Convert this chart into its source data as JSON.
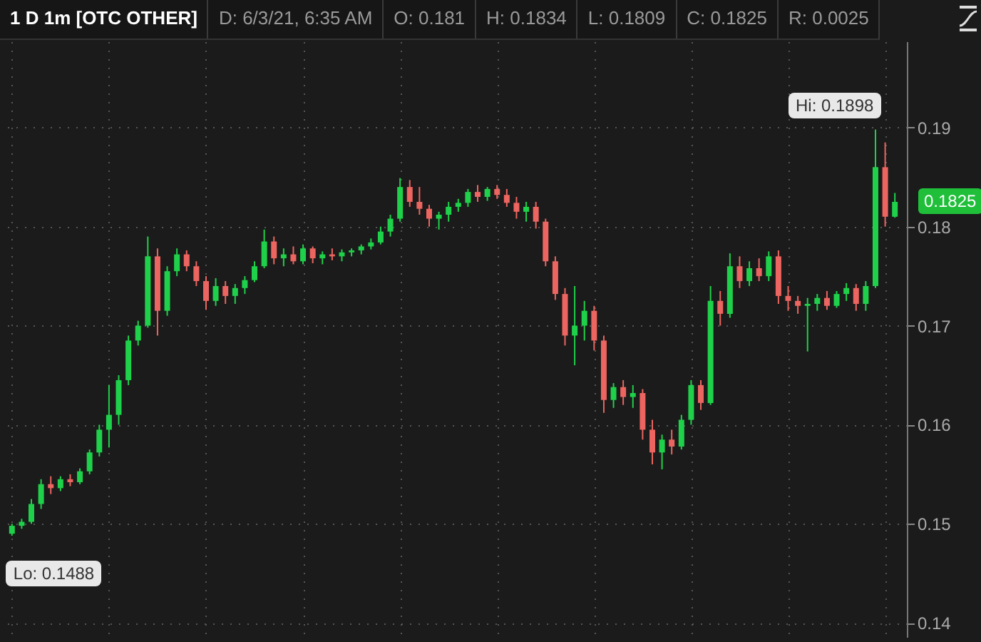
{
  "chart_data": {
    "type": "candlestick",
    "title": "1 D 1m [OTC OTHER]",
    "annotations": [
      "D: 6/3/21, 6:35 AM",
      "O: 0.181",
      "H: 0.1834",
      "L: 0.1809",
      "C: 0.1825",
      "R: 0.0025",
      "Hi: 0.1898",
      "Lo: 0.1488",
      "0.1825"
    ],
    "categories": [
      null,
      null,
      null,
      null,
      null,
      null,
      null,
      null,
      null,
      null,
      null,
      null,
      null,
      null,
      null,
      null,
      null,
      null,
      null,
      null,
      null,
      null,
      null,
      null,
      null,
      null,
      null,
      null,
      null,
      null,
      null,
      null,
      null,
      null,
      null,
      null,
      null,
      null,
      null,
      null,
      null,
      null,
      null,
      null,
      null,
      null,
      null,
      null,
      null,
      null,
      null,
      null,
      null,
      null,
      null,
      null,
      null,
      null,
      null,
      null,
      null,
      null,
      null,
      null,
      null,
      null,
      null,
      null,
      null,
      null,
      null,
      null,
      null,
      null,
      null,
      null,
      null,
      null,
      null,
      null,
      null,
      null,
      null,
      null,
      null,
      null,
      null,
      null,
      null,
      null,
      null,
      null
    ],
    "ohlc": [
      [
        0.149,
        0.15,
        0.1488,
        0.1498
      ],
      [
        0.1498,
        0.1505,
        0.1495,
        0.1502
      ],
      [
        0.1502,
        0.1525,
        0.15,
        0.152
      ],
      [
        0.152,
        0.1545,
        0.1515,
        0.154
      ],
      [
        0.154,
        0.1548,
        0.153,
        0.1536
      ],
      [
        0.1536,
        0.1548,
        0.1533,
        0.1545
      ],
      [
        0.1545,
        0.155,
        0.1538,
        0.1542
      ],
      [
        0.1542,
        0.1556,
        0.154,
        0.1553
      ],
      [
        0.1553,
        0.1575,
        0.155,
        0.1572
      ],
      [
        0.1572,
        0.16,
        0.1568,
        0.1595
      ],
      [
        0.1595,
        0.164,
        0.1577,
        0.161
      ],
      [
        0.161,
        0.165,
        0.16,
        0.1645
      ],
      [
        0.1645,
        0.169,
        0.164,
        0.1685
      ],
      [
        0.1685,
        0.1705,
        0.168,
        0.17
      ],
      [
        0.17,
        0.179,
        0.1698,
        0.177
      ],
      [
        0.177,
        0.1778,
        0.169,
        0.1715
      ],
      [
        0.1715,
        0.176,
        0.171,
        0.1755
      ],
      [
        0.1755,
        0.1778,
        0.175,
        0.1772
      ],
      [
        0.1772,
        0.1776,
        0.1755,
        0.176
      ],
      [
        0.176,
        0.1765,
        0.174,
        0.1745
      ],
      [
        0.1745,
        0.175,
        0.1716,
        0.1725
      ],
      [
        0.1725,
        0.1748,
        0.172,
        0.174
      ],
      [
        0.174,
        0.1745,
        0.1722,
        0.173
      ],
      [
        0.173,
        0.1742,
        0.1722,
        0.1738
      ],
      [
        0.1738,
        0.175,
        0.1732,
        0.1746
      ],
      [
        0.1746,
        0.1765,
        0.1744,
        0.176
      ],
      [
        0.176,
        0.1797,
        0.1758,
        0.1785
      ],
      [
        0.1785,
        0.179,
        0.1762,
        0.1768
      ],
      [
        0.1768,
        0.1778,
        0.176,
        0.1772
      ],
      [
        0.1772,
        0.178,
        0.1762,
        0.1765
      ],
      [
        0.1765,
        0.1782,
        0.1762,
        0.1778
      ],
      [
        0.1778,
        0.178,
        0.1763,
        0.1768
      ],
      [
        0.1768,
        0.1775,
        0.1762,
        0.1772
      ],
      [
        0.1772,
        0.1778,
        0.1766,
        0.177
      ],
      [
        0.177,
        0.1777,
        0.1765,
        0.1774
      ],
      [
        0.1774,
        0.1778,
        0.177,
        0.1776
      ],
      [
        0.1776,
        0.1782,
        0.1772,
        0.178
      ],
      [
        0.178,
        0.1788,
        0.1777,
        0.1784
      ],
      [
        0.1784,
        0.18,
        0.1782,
        0.1795
      ],
      [
        0.1795,
        0.1812,
        0.179,
        0.1808
      ],
      [
        0.1808,
        0.1849,
        0.1805,
        0.184
      ],
      [
        0.184,
        0.1847,
        0.182,
        0.1825
      ],
      [
        0.1825,
        0.184,
        0.1812,
        0.1818
      ],
      [
        0.1818,
        0.1822,
        0.18,
        0.1808
      ],
      [
        0.1808,
        0.1815,
        0.1797,
        0.1812
      ],
      [
        0.1812,
        0.1825,
        0.1805,
        0.182
      ],
      [
        0.182,
        0.1828,
        0.1815,
        0.1824
      ],
      [
        0.1824,
        0.1838,
        0.182,
        0.1835
      ],
      [
        0.1835,
        0.1842,
        0.1825,
        0.183
      ],
      [
        0.183,
        0.184,
        0.1826,
        0.1838
      ],
      [
        0.1838,
        0.1842,
        0.1828,
        0.1832
      ],
      [
        0.1832,
        0.1838,
        0.182,
        0.1824
      ],
      [
        0.1824,
        0.183,
        0.1808,
        0.1815
      ],
      [
        0.1815,
        0.1825,
        0.1805,
        0.182
      ],
      [
        0.182,
        0.1825,
        0.1798,
        0.1805
      ],
      [
        0.1805,
        0.1808,
        0.176,
        0.1765
      ],
      [
        0.1765,
        0.177,
        0.1726,
        0.1732
      ],
      [
        0.1732,
        0.1738,
        0.168,
        0.169
      ],
      [
        0.169,
        0.174,
        0.166,
        0.17
      ],
      [
        0.17,
        0.1725,
        0.1685,
        0.1715
      ],
      [
        0.1715,
        0.172,
        0.1675,
        0.1685
      ],
      [
        0.1685,
        0.169,
        0.1612,
        0.1625
      ],
      [
        0.1625,
        0.1642,
        0.1617,
        0.1638
      ],
      [
        0.1638,
        0.1645,
        0.162,
        0.1628
      ],
      [
        0.1628,
        0.164,
        0.1617,
        0.1632
      ],
      [
        0.1632,
        0.1636,
        0.1585,
        0.1595
      ],
      [
        0.1595,
        0.1605,
        0.156,
        0.1572
      ],
      [
        0.1572,
        0.159,
        0.1555,
        0.1585
      ],
      [
        0.1585,
        0.1595,
        0.157,
        0.1578
      ],
      [
        0.1578,
        0.161,
        0.1575,
        0.1605
      ],
      [
        0.1605,
        0.1645,
        0.16,
        0.164
      ],
      [
        0.164,
        0.1645,
        0.1615,
        0.1622
      ],
      [
        0.1622,
        0.174,
        0.162,
        0.1725
      ],
      [
        0.1725,
        0.1735,
        0.17,
        0.1712
      ],
      [
        0.1712,
        0.1773,
        0.1708,
        0.176
      ],
      [
        0.176,
        0.177,
        0.1738,
        0.1745
      ],
      [
        0.1745,
        0.1765,
        0.174,
        0.1758
      ],
      [
        0.1758,
        0.1768,
        0.1745,
        0.175
      ],
      [
        0.175,
        0.1775,
        0.1745,
        0.177
      ],
      [
        0.177,
        0.1776,
        0.1722,
        0.173
      ],
      [
        0.173,
        0.174,
        0.1715,
        0.1725
      ],
      [
        0.1725,
        0.173,
        0.1712,
        0.172
      ],
      [
        0.172,
        0.1728,
        0.1674,
        0.1722
      ],
      [
        0.1722,
        0.1732,
        0.1715,
        0.1728
      ],
      [
        0.1728,
        0.1735,
        0.1716,
        0.172
      ],
      [
        0.172,
        0.1735,
        0.1718,
        0.1732
      ],
      [
        0.1732,
        0.1743,
        0.1725,
        0.1738
      ],
      [
        0.1738,
        0.1742,
        0.1715,
        0.1722
      ],
      [
        0.1722,
        0.1745,
        0.1715,
        0.174
      ],
      [
        0.174,
        0.1898,
        0.1738,
        0.186
      ],
      [
        0.186,
        0.1885,
        0.18,
        0.181
      ],
      [
        0.181,
        0.1834,
        0.1809,
        0.1825
      ]
    ],
    "ylim": [
      0.1385,
      0.1987
    ],
    "yticks": [
      0.14,
      0.15,
      0.16,
      0.17,
      0.18,
      0.19
    ],
    "grid": true,
    "tick_labels": "y"
  }
}
